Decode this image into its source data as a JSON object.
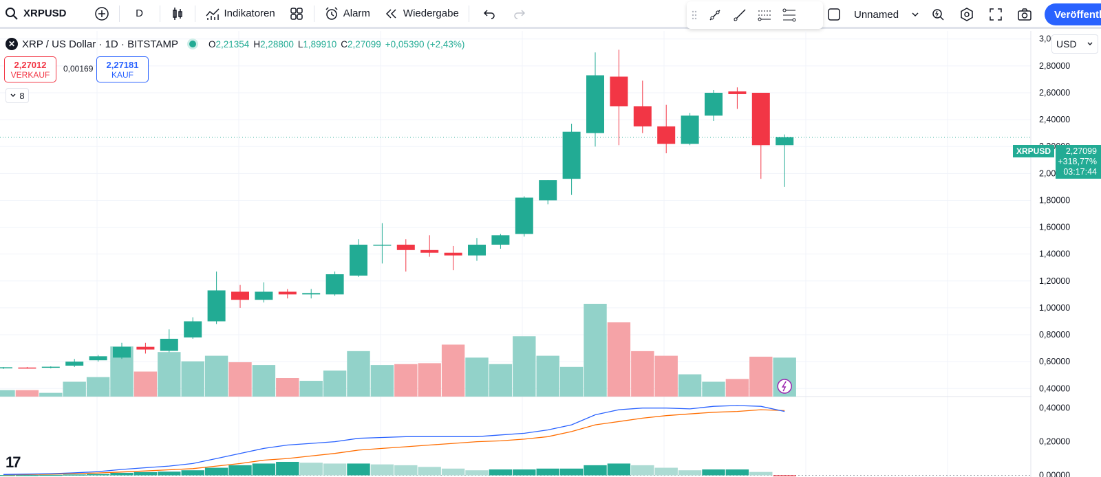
{
  "toolbar": {
    "symbol": "XRPUSD",
    "interval": "D",
    "indicators_label": "Indikatoren",
    "alarm_label": "Alarm",
    "replay_label": "Wiedergabe",
    "layout_name": "Unnamed",
    "publish_label": "Veröffentli"
  },
  "legend": {
    "title": "XRP / US Dollar · 1D · BITSTAMP",
    "o_key": "O",
    "o_val": "2,21354",
    "h_key": "H",
    "h_val": "2,28800",
    "l_key": "L",
    "l_val": "1,89910",
    "c_key": "C",
    "c_val": "2,27099",
    "change": "+0,05390 (+2,43%)"
  },
  "trade": {
    "sell_price": "2,27012",
    "sell_label": "VERKAUF",
    "spread": "0,00169",
    "buy_price": "2,27181",
    "buy_label": "KAUF"
  },
  "collapse_count": "8",
  "currency": "USD",
  "price_tag": {
    "symbol": "XRPUSD",
    "price": "2,27099",
    "change": "+318,77%",
    "countdown": "03:17:44"
  },
  "colors": {
    "up": "#22ab94",
    "down": "#f23645",
    "up_vol": "#92d2c9",
    "down_vol": "#f5a3a7",
    "ma_fast": "#2962ff",
    "ma_slow": "#ff6d00"
  },
  "chart_data": {
    "type": "candlestick",
    "symbol": "XRPUSD",
    "interval": "1D",
    "y_ticks_main": [
      "1,80000",
      "2,00000",
      "2,20000",
      "2,40000",
      "2,60000",
      "2,80000",
      "3,00000"
    ],
    "ylim_main": [
      0.34,
      3.06
    ],
    "candles": [
      {
        "o": 0.552,
        "h": 0.56,
        "l": 0.545,
        "c": 0.558
      },
      {
        "o": 0.556,
        "h": 0.56,
        "l": 0.548,
        "c": 0.552
      },
      {
        "o": 0.555,
        "h": 0.565,
        "l": 0.55,
        "c": 0.562
      },
      {
        "o": 0.57,
        "h": 0.62,
        "l": 0.56,
        "c": 0.6
      },
      {
        "o": 0.61,
        "h": 0.65,
        "l": 0.6,
        "c": 0.64
      },
      {
        "o": 0.63,
        "h": 0.74,
        "l": 0.62,
        "c": 0.71
      },
      {
        "o": 0.71,
        "h": 0.74,
        "l": 0.66,
        "c": 0.69
      },
      {
        "o": 0.68,
        "h": 0.84,
        "l": 0.67,
        "c": 0.77
      },
      {
        "o": 0.78,
        "h": 0.93,
        "l": 0.77,
        "c": 0.9
      },
      {
        "o": 0.9,
        "h": 1.27,
        "l": 0.88,
        "c": 1.13
      },
      {
        "o": 1.12,
        "h": 1.17,
        "l": 1.0,
        "c": 1.06
      },
      {
        "o": 1.06,
        "h": 1.19,
        "l": 1.04,
        "c": 1.12
      },
      {
        "o": 1.12,
        "h": 1.14,
        "l": 1.07,
        "c": 1.1
      },
      {
        "o": 1.1,
        "h": 1.14,
        "l": 1.07,
        "c": 1.11
      },
      {
        "o": 1.1,
        "h": 1.27,
        "l": 1.09,
        "c": 1.25
      },
      {
        "o": 1.24,
        "h": 1.51,
        "l": 1.23,
        "c": 1.47
      },
      {
        "o": 1.47,
        "h": 1.63,
        "l": 1.33,
        "c": 1.47
      },
      {
        "o": 1.47,
        "h": 1.51,
        "l": 1.27,
        "c": 1.43
      },
      {
        "o": 1.43,
        "h": 1.54,
        "l": 1.38,
        "c": 1.41
      },
      {
        "o": 1.41,
        "h": 1.46,
        "l": 1.28,
        "c": 1.39
      },
      {
        "o": 1.39,
        "h": 1.52,
        "l": 1.35,
        "c": 1.47
      },
      {
        "o": 1.47,
        "h": 1.55,
        "l": 1.44,
        "c": 1.54
      },
      {
        "o": 1.55,
        "h": 1.83,
        "l": 1.53,
        "c": 1.82
      },
      {
        "o": 1.8,
        "h": 1.95,
        "l": 1.77,
        "c": 1.95
      },
      {
        "o": 1.96,
        "h": 2.37,
        "l": 1.84,
        "c": 2.31
      },
      {
        "o": 2.3,
        "h": 2.9,
        "l": 2.2,
        "c": 2.73
      },
      {
        "o": 2.72,
        "h": 2.92,
        "l": 2.21,
        "c": 2.5
      },
      {
        "o": 2.5,
        "h": 2.69,
        "l": 2.3,
        "c": 2.35
      },
      {
        "o": 2.35,
        "h": 2.51,
        "l": 2.15,
        "c": 2.22
      },
      {
        "o": 2.22,
        "h": 2.45,
        "l": 2.21,
        "c": 2.43
      },
      {
        "o": 2.43,
        "h": 2.62,
        "l": 2.39,
        "c": 2.6
      },
      {
        "o": 2.61,
        "h": 2.64,
        "l": 2.48,
        "c": 2.59
      },
      {
        "o": 2.6,
        "h": 2.6,
        "l": 1.96,
        "c": 2.21
      },
      {
        "o": 2.21,
        "h": 2.29,
        "l": 1.9,
        "c": 2.27
      }
    ],
    "volume_rel": [
      0.07,
      0.07,
      0.04,
      0.16,
      0.21,
      0.54,
      0.27,
      0.48,
      0.38,
      0.44,
      0.37,
      0.34,
      0.2,
      0.17,
      0.28,
      0.49,
      0.34,
      0.35,
      0.36,
      0.56,
      0.42,
      0.35,
      0.65,
      0.44,
      0.32,
      1.0,
      0.8,
      0.49,
      0.44,
      0.24,
      0.16,
      0.19,
      0.43,
      0.42
    ],
    "osc_y_ticks": [
      "0,00000",
      "0,20000",
      "0,40000"
    ],
    "osc_ylim": [
      -0.01,
      0.46
    ],
    "osc_fast": [
      0.005,
      0.007,
      0.01,
      0.015,
      0.022,
      0.035,
      0.045,
      0.055,
      0.07,
      0.1,
      0.13,
      0.16,
      0.18,
      0.19,
      0.2,
      0.22,
      0.225,
      0.23,
      0.23,
      0.23,
      0.23,
      0.24,
      0.25,
      0.27,
      0.3,
      0.36,
      0.39,
      0.4,
      0.4,
      0.395,
      0.41,
      0.415,
      0.41,
      0.38
    ],
    "osc_slow": [
      0.003,
      0.005,
      0.007,
      0.01,
      0.014,
      0.02,
      0.026,
      0.033,
      0.04,
      0.055,
      0.07,
      0.09,
      0.1,
      0.115,
      0.13,
      0.15,
      0.16,
      0.17,
      0.18,
      0.19,
      0.2,
      0.205,
      0.215,
      0.23,
      0.26,
      0.3,
      0.32,
      0.34,
      0.355,
      0.365,
      0.375,
      0.38,
      0.39,
      0.385
    ],
    "osc_hist": [
      0.002,
      0.002,
      0.003,
      0.005,
      0.008,
      0.015,
      0.019,
      0.022,
      0.03,
      0.045,
      0.06,
      0.07,
      0.08,
      0.075,
      0.07,
      0.07,
      0.065,
      0.06,
      0.05,
      0.04,
      0.03,
      0.035,
      0.035,
      0.04,
      0.04,
      0.06,
      0.07,
      0.06,
      0.045,
      0.03,
      0.035,
      0.035,
      0.02,
      -0.005
    ]
  }
}
